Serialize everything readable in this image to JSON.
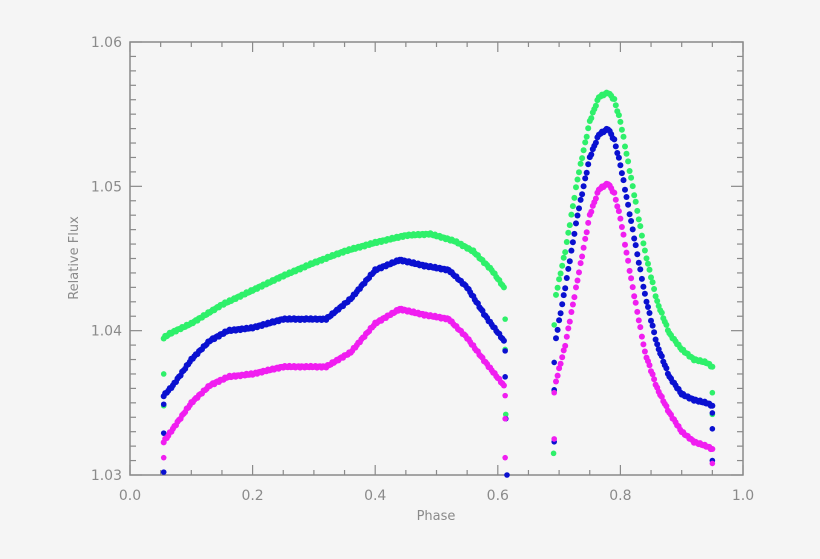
{
  "chart_data": {
    "type": "scatter",
    "title": "",
    "xlabel": "Phase",
    "ylabel": "Relative Flux",
    "xlim": [
      0.0,
      1.0
    ],
    "ylim": [
      1.03,
      1.06
    ],
    "xticks": [
      "0.0",
      "0.2",
      "0.4",
      "0.6",
      "0.8",
      "1.0"
    ],
    "yticks": [
      "1.03",
      "1.04",
      "1.05",
      "1.06"
    ],
    "grid": false,
    "legend": null,
    "series": [
      {
        "name": "green",
        "color": "#2ef06a",
        "segments": [
          {
            "x": [
              0.055,
              0.065,
              0.1,
              0.15,
              0.2,
              0.25,
              0.3,
              0.35,
              0.4,
              0.45,
              0.49,
              0.53,
              0.56,
              0.59,
              0.61
            ],
            "y": [
              1.0395,
              1.0398,
              1.0405,
              1.0418,
              1.0428,
              1.0438,
              1.0447,
              1.0455,
              1.0461,
              1.0466,
              1.0467,
              1.0462,
              1.0455,
              1.0442,
              1.043
            ]
          },
          {
            "x": [
              0.695,
              0.71,
              0.73,
              0.75,
              0.765,
              0.78,
              0.79,
              0.8,
              0.82,
              0.84,
              0.86,
              0.88,
              0.9,
              0.92,
              0.94,
              0.95
            ],
            "y": [
              1.0425,
              1.0455,
              1.0505,
              1.0545,
              1.0562,
              1.0565,
              1.056,
              1.0545,
              1.05,
              1.0455,
              1.042,
              1.0398,
              1.0387,
              1.038,
              1.0378,
              1.0375
            ]
          }
        ],
        "outliers": [
          [
            0.055,
            1.037
          ],
          [
            0.055,
            1.0348
          ],
          [
            0.612,
            1.0408
          ],
          [
            0.612,
            1.0387
          ],
          [
            0.613,
            1.0342
          ],
          [
            0.692,
            1.0404
          ],
          [
            0.692,
            1.0358
          ],
          [
            0.691,
            1.0315
          ],
          [
            0.95,
            1.0357
          ],
          [
            0.95,
            1.0342
          ]
        ]
      },
      {
        "name": "blue",
        "color": "#0a10d0",
        "segments": [
          {
            "x": [
              0.055,
              0.07,
              0.1,
              0.13,
              0.16,
              0.2,
              0.25,
              0.28,
              0.32,
              0.36,
              0.4,
              0.44,
              0.48,
              0.52,
              0.55,
              0.58,
              0.61
            ],
            "y": [
              1.0355,
              1.0362,
              1.038,
              1.0393,
              1.04,
              1.0402,
              1.0408,
              1.0408,
              1.0408,
              1.0422,
              1.0442,
              1.0449,
              1.0445,
              1.0442,
              1.043,
              1.041,
              1.0393
            ]
          },
          {
            "x": [
              0.695,
              0.71,
              0.73,
              0.75,
              0.765,
              0.78,
              0.79,
              0.8,
              0.82,
              0.84,
              0.86,
              0.88,
              0.9,
              0.92,
              0.94,
              0.95
            ],
            "y": [
              1.0395,
              1.043,
              1.048,
              1.052,
              1.0536,
              1.054,
              1.0532,
              1.0515,
              1.047,
              1.0425,
              1.039,
              1.0368,
              1.0356,
              1.0352,
              1.035,
              1.0348
            ]
          }
        ],
        "outliers": [
          [
            0.055,
            1.0349
          ],
          [
            0.055,
            1.0329
          ],
          [
            0.055,
            1.0302
          ],
          [
            0.612,
            1.0386
          ],
          [
            0.612,
            1.0368
          ],
          [
            0.613,
            1.0339
          ],
          [
            0.615,
            1.03
          ],
          [
            0.692,
            1.0378
          ],
          [
            0.692,
            1.0359
          ],
          [
            0.692,
            1.0323
          ],
          [
            0.95,
            1.0343
          ],
          [
            0.95,
            1.0332
          ],
          [
            0.95,
            1.031
          ]
        ]
      },
      {
        "name": "magenta",
        "color": "#f01ef0",
        "segments": [
          {
            "x": [
              0.055,
              0.07,
              0.1,
              0.13,
              0.16,
              0.2,
              0.25,
              0.28,
              0.32,
              0.36,
              0.4,
              0.44,
              0.48,
              0.52,
              0.55,
              0.58,
              0.61
            ],
            "y": [
              1.0323,
              1.0332,
              1.035,
              1.0362,
              1.0368,
              1.037,
              1.0375,
              1.0375,
              1.0375,
              1.0385,
              1.0405,
              1.0415,
              1.0411,
              1.0408,
              1.0395,
              1.0378,
              1.0362
            ]
          },
          {
            "x": [
              0.695,
              0.71,
              0.73,
              0.75,
              0.765,
              0.78,
              0.79,
              0.8,
              0.82,
              0.84,
              0.86,
              0.88,
              0.9,
              0.92,
              0.94,
              0.95
            ],
            "y": [
              1.0365,
              1.039,
              1.0435,
              1.048,
              1.0498,
              1.0502,
              1.0495,
              1.0478,
              1.043,
              1.0385,
              1.036,
              1.0343,
              1.033,
              1.0323,
              1.032,
              1.0318
            ]
          }
        ],
        "outliers": [
          [
            0.055,
            1.0312
          ],
          [
            0.612,
            1.0355
          ],
          [
            0.612,
            1.0339
          ],
          [
            0.612,
            1.0312
          ],
          [
            0.692,
            1.0357
          ],
          [
            0.692,
            1.0325
          ],
          [
            0.95,
            1.0308
          ]
        ]
      }
    ]
  }
}
